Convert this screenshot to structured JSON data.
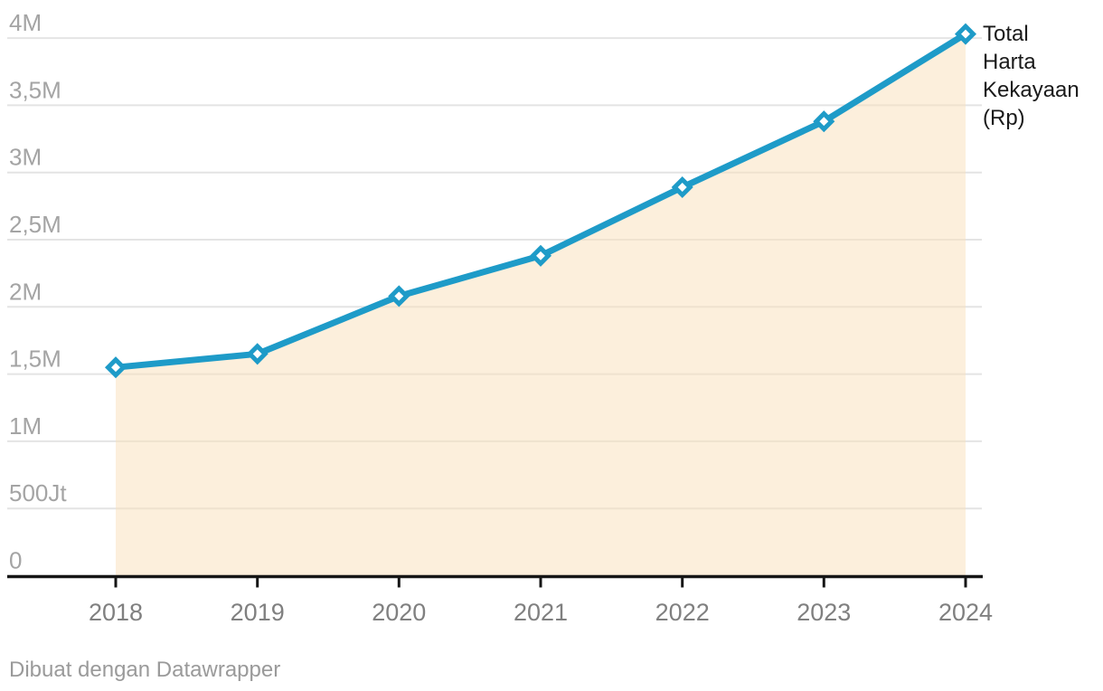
{
  "chart_data": {
    "type": "area",
    "title": "",
    "x": [
      2018,
      2019,
      2020,
      2021,
      2022,
      2023,
      2024
    ],
    "x_tick_labels": [
      "2018",
      "2019",
      "2020",
      "2021",
      "2022",
      "2023",
      "2024"
    ],
    "series": [
      {
        "name": "Total Harta Kekayaan (Rp)",
        "values": [
          1.55,
          1.65,
          2.08,
          2.38,
          2.89,
          3.38,
          4.03
        ]
      }
    ],
    "value_scale": "M = miliar, Jt = juta (as shown on axis labels)",
    "ylim": [
      0,
      4.1
    ],
    "y_ticks": [
      {
        "value": 4,
        "label": "4M"
      },
      {
        "value": 3.5,
        "label": "3,5M"
      },
      {
        "value": 3,
        "label": "3M"
      },
      {
        "value": 2.5,
        "label": "2,5M"
      },
      {
        "value": 2,
        "label": "2M"
      },
      {
        "value": 1.5,
        "label": "1,5M"
      },
      {
        "value": 1,
        "label": "1M"
      },
      {
        "value": 0.5,
        "label": "500Jt"
      },
      {
        "value": 0,
        "label": "0"
      }
    ],
    "grid": true,
    "marker": "open-diamond",
    "legend": {
      "position": "right-of-last-point",
      "label": "Total Harta Kekayaan (Rp)"
    },
    "colors": {
      "line": "#1e9bc8",
      "area_fill": "#f9dfb9",
      "area_opacity": 0.5,
      "gridline": "#e4e4e4",
      "axis": "#161616",
      "x_tick_label": "#808080",
      "y_tick_label": "#a4a4a4",
      "series_label": "#1a1a1a",
      "footer": "#9a9a9a",
      "marker_fill": "#ffffff"
    }
  },
  "footer": {
    "credit": "Dibuat dengan Datawrapper"
  }
}
